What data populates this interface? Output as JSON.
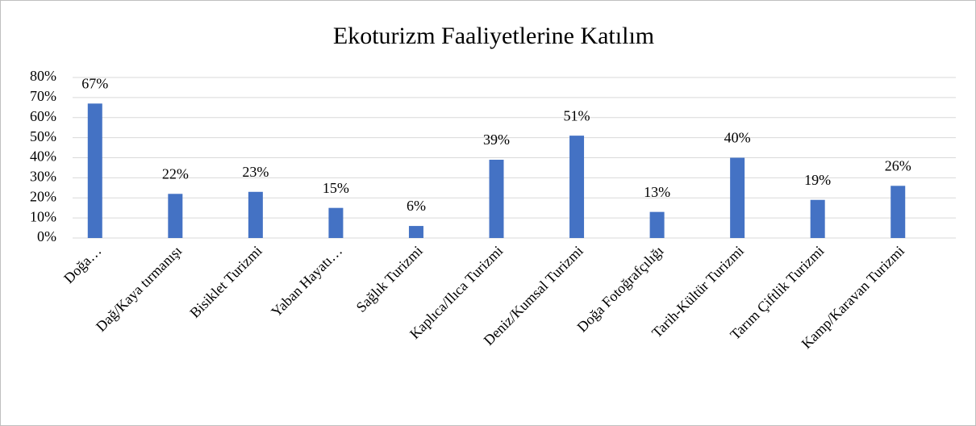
{
  "chart_data": {
    "type": "bar",
    "title": "Ekoturizm Faaliyetlerine Katılım",
    "categories": [
      "Doğa…",
      "Dağ/Kaya tırmanışı",
      "Bisiklet Turizmi",
      "Yaban Hayatı…",
      "Sağlık Turizmi",
      "Kaplıca/Ilıca Turizmi",
      "Deniz/Kumsal Turizmi",
      "Doğa Fotoğrafçılığı",
      "Tarih-Kültür Turizmi",
      "Tarım Çiftlik Turizmi",
      "Kamp/Karavan Turizmi"
    ],
    "values": [
      67,
      22,
      23,
      15,
      6,
      39,
      51,
      13,
      40,
      19,
      26
    ],
    "value_labels": [
      "67%",
      "22%",
      "23%",
      "15%",
      "6%",
      "39%",
      "51%",
      "13%",
      "40%",
      "19%",
      "26%"
    ],
    "color": "#4472c4",
    "ylim": [
      0,
      80
    ],
    "yticks": [
      {
        "value": 0,
        "label": "0%"
      },
      {
        "value": 10,
        "label": "10%"
      },
      {
        "value": 20,
        "label": "20%"
      },
      {
        "value": 30,
        "label": "30%"
      },
      {
        "value": 40,
        "label": "40%"
      },
      {
        "value": 50,
        "label": "50%"
      },
      {
        "value": 60,
        "label": "60%"
      },
      {
        "value": 70,
        "label": "70%"
      },
      {
        "value": 80,
        "label": "80%"
      }
    ],
    "grid": true
  }
}
